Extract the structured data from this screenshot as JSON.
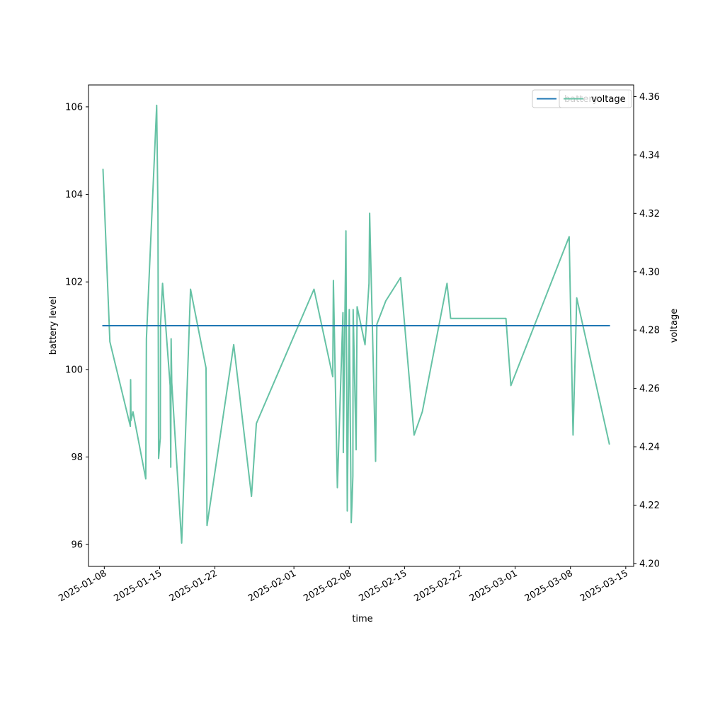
{
  "chart_data": {
    "type": "line",
    "xlabel": "time",
    "ylabel_left": "battery level",
    "ylabel_right": "voltage",
    "xlim": [
      "2025-01-06",
      "2025-03-16"
    ],
    "ylim_left": [
      95.5,
      106.5
    ],
    "ylim_right": [
      4.199,
      4.364
    ],
    "x_ticks": [
      "2025-01-08",
      "2025-01-15",
      "2025-01-22",
      "2025-02-01",
      "2025-02-08",
      "2025-02-15",
      "2025-02-22",
      "2025-03-01",
      "2025-03-08",
      "2025-03-15"
    ],
    "y_ticks_left": [
      96,
      98,
      100,
      102,
      104,
      106
    ],
    "y_ticks_right": [
      4.2,
      4.22,
      4.24,
      4.26,
      4.28,
      4.3,
      4.32,
      4.34,
      4.36
    ],
    "grid": false,
    "legends": [
      {
        "placement": "top-right",
        "label": "battery",
        "color": "#1f77b4",
        "axis": "left"
      },
      {
        "placement": "top-right",
        "label": "voltage",
        "color": "#66c2a5",
        "axis": "right"
      }
    ],
    "series": [
      {
        "name": "battery",
        "axis": "left",
        "color": "#1f77b4",
        "points": [
          [
            "2025-01-07 20:00",
            101
          ],
          [
            "2025-03-12 22:00",
            101
          ]
        ]
      },
      {
        "name": "voltage",
        "axis": "right",
        "color": "#66c2a5",
        "points": [
          [
            "2025-01-07 20:00",
            4.335
          ],
          [
            "2025-01-08 17:00",
            4.276
          ],
          [
            "2025-01-11 07:00",
            4.247
          ],
          [
            "2025-01-11 08:00",
            4.263
          ],
          [
            "2025-01-11 09:00",
            4.249
          ],
          [
            "2025-01-11 15:00",
            4.252
          ],
          [
            "2025-01-13 06:00",
            4.229
          ],
          [
            "2025-01-13 08:00",
            4.277
          ],
          [
            "2025-01-14 15:00",
            4.357
          ],
          [
            "2025-01-14 19:00",
            4.32
          ],
          [
            "2025-01-14 21:00",
            4.236
          ],
          [
            "2025-01-15 02:00",
            4.243
          ],
          [
            "2025-01-15 03:00",
            4.282
          ],
          [
            "2025-01-15 09:00",
            4.296
          ],
          [
            "2025-01-16 08:00",
            4.261
          ],
          [
            "2025-01-16 10:00",
            4.233
          ],
          [
            "2025-01-16 11:00",
            4.277
          ],
          [
            "2025-01-16 13:00",
            4.262
          ],
          [
            "2025-01-17 19:00",
            4.207
          ],
          [
            "2025-01-18 13:00",
            4.265
          ],
          [
            "2025-01-18 22:00",
            4.294
          ],
          [
            "2025-01-20 21:00",
            4.267
          ],
          [
            "2025-01-21 00:00",
            4.213
          ],
          [
            "2025-01-24 09:00",
            4.275
          ],
          [
            "2025-01-26 15:00",
            4.223
          ],
          [
            "2025-01-27 06:00",
            4.248
          ],
          [
            "2025-02-03 13:00",
            4.294
          ],
          [
            "2025-02-05 22:00",
            4.264
          ],
          [
            "2025-02-06 00:00",
            4.297
          ],
          [
            "2025-02-06 12:00",
            4.226
          ],
          [
            "2025-02-07 05:00",
            4.286
          ],
          [
            "2025-02-07 06:00",
            4.238
          ],
          [
            "2025-02-07 14:00",
            4.314
          ],
          [
            "2025-02-07 18:00",
            4.218
          ],
          [
            "2025-02-08 00:00",
            4.287
          ],
          [
            "2025-02-08 06:00",
            4.214
          ],
          [
            "2025-02-08 09:00",
            4.222
          ],
          [
            "2025-02-08 11:00",
            4.23
          ],
          [
            "2025-02-08 12:00",
            4.287
          ],
          [
            "2025-02-08 21:00",
            4.239
          ],
          [
            "2025-02-09 00:00",
            4.288
          ],
          [
            "2025-02-10 00:00",
            4.275
          ],
          [
            "2025-02-10 12:00",
            4.296
          ],
          [
            "2025-02-10 14:00",
            4.32
          ],
          [
            "2025-02-11 08:00",
            4.235
          ],
          [
            "2025-02-11 12:00",
            4.282
          ],
          [
            "2025-02-12 15:00",
            4.29
          ],
          [
            "2025-02-14 12:00",
            4.298
          ],
          [
            "2025-02-16 05:00",
            4.244
          ],
          [
            "2025-02-17 06:00",
            4.252
          ],
          [
            "2025-02-20 09:00",
            4.296
          ],
          [
            "2025-02-20 20:00",
            4.284
          ],
          [
            "2025-02-27 20:00",
            4.284
          ],
          [
            "2025-02-28 11:00",
            4.261
          ],
          [
            "2025-03-07 20:00",
            4.312
          ],
          [
            "2025-03-08 08:00",
            4.244
          ],
          [
            "2025-03-08 19:00",
            4.291
          ],
          [
            "2025-03-12 22:00",
            4.241
          ]
        ]
      }
    ]
  }
}
